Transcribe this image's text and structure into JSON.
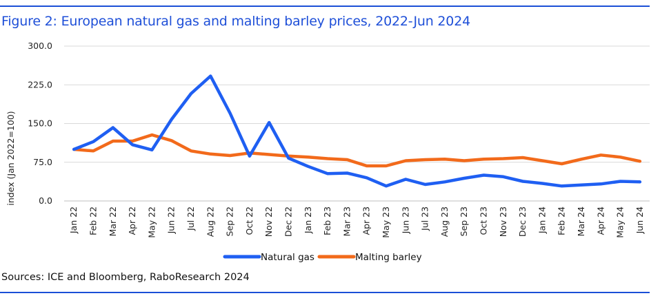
{
  "title": "Figure 2: European natural gas and malting barley prices, 2022-Jun 2024",
  "source": "Sources: ICE and Bloomberg, RaboResearch 2024",
  "colors": {
    "title": "#1e4fd8",
    "rule": "#1a4fd6",
    "gas": "#1f5ff2",
    "barley": "#f26a1b",
    "grid": "#d9d9d9"
  },
  "chart_data": {
    "type": "line",
    "title": "Figure 2: European natural gas and malting barley prices, 2022-Jun 2024",
    "xlabel": "",
    "ylabel": "index (Jan 2022=100)",
    "ylim": [
      0,
      300
    ],
    "yticks": [
      "0.0",
      "75.0",
      "150.0",
      "225.0",
      "300.0"
    ],
    "ytick_values": [
      0,
      75,
      150,
      225,
      300
    ],
    "grid": true,
    "legend": "bottom-center",
    "categories": [
      "Jan 22",
      "Feb 22",
      "Mar 22",
      "Apr 22",
      "May 22",
      "Jun 22",
      "Jul 22",
      "Aug 22",
      "Sep 22",
      "Oct 22",
      "Nov 22",
      "Dec 22",
      "Jan 23",
      "Feb 23",
      "Mar 23",
      "Apr 23",
      "May 23",
      "Jun 23",
      "Jul 23",
      "Aug 23",
      "Sep 23",
      "Oct 23",
      "Nov 23",
      "Dec 23",
      "Jan 24",
      "Feb 24",
      "Mar 24",
      "Apr 24",
      "May 24",
      "Jun 24"
    ],
    "series": [
      {
        "name": "Natural gas",
        "color": "#1f5ff2",
        "values": [
          100,
          115,
          142,
          109,
          99,
          158,
          208,
          242,
          170,
          87,
          152,
          83,
          67,
          53,
          54,
          45,
          29,
          42,
          32,
          37,
          44,
          50,
          47,
          38,
          34,
          29,
          31,
          33,
          38,
          37
        ]
      },
      {
        "name": "Malting barley",
        "color": "#f26a1b",
        "values": [
          100,
          97,
          116,
          116,
          128,
          117,
          97,
          91,
          88,
          93,
          90,
          87,
          85,
          82,
          80,
          68,
          68,
          78,
          80,
          81,
          78,
          81,
          82,
          84,
          78,
          72,
          81,
          89,
          85,
          77
        ]
      }
    ]
  }
}
